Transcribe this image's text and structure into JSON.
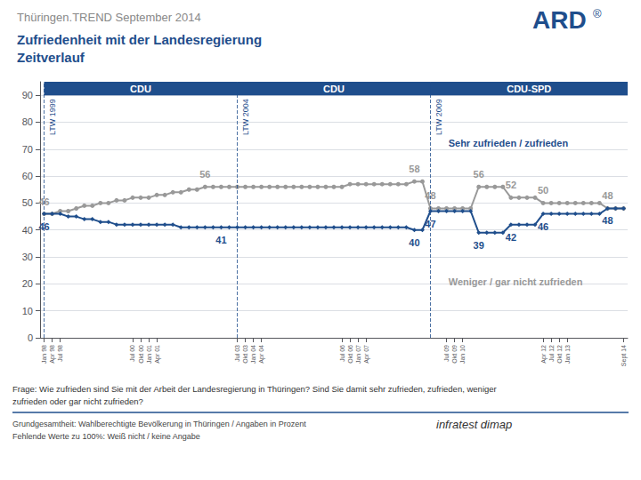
{
  "chart_data": {
    "type": "line",
    "title": "Thüringen.TREND September 2014",
    "subtitle": [
      "Zufriedenheit mit der Landesregierung",
      "Zeitverlauf"
    ],
    "logo": [
      "ARD",
      "®"
    ],
    "categories": [
      "Jan 98",
      "Apr 98",
      "Jul 98",
      null,
      null,
      null,
      null,
      null,
      null,
      null,
      null,
      "Jul 00",
      "Okt 00",
      "Jan 01",
      "Apr 01",
      null,
      null,
      null,
      null,
      null,
      null,
      null,
      null,
      null,
      "Jul 03",
      "Okt 03",
      "Jan 04",
      "Apr 04",
      null,
      null,
      null,
      null,
      null,
      null,
      null,
      null,
      null,
      "Jul 06",
      "Okt 06",
      "Jan 07",
      "Apr 07",
      null,
      null,
      null,
      null,
      null,
      null,
      null,
      null,
      null,
      "Jul 09",
      "Okt 09",
      "Jan 10",
      null,
      null,
      null,
      null,
      null,
      null,
      null,
      null,
      null,
      "Apr 12",
      "Jul 12",
      "Okt 12",
      "Jan 13",
      null,
      null,
      null,
      null,
      null,
      null,
      "Sept 14"
    ],
    "series": [
      {
        "name": "Weniger / gar nicht zufrieden",
        "color": "#999999",
        "marker": "circle",
        "line_style": "solid",
        "values": [
          46,
          46,
          47,
          47,
          48,
          49,
          49,
          50,
          50,
          51,
          51,
          52,
          52,
          52,
          53,
          53,
          54,
          54,
          55,
          55,
          56,
          56,
          56,
          56,
          56,
          56,
          56,
          56,
          56,
          56,
          56,
          56,
          56,
          56,
          56,
          56,
          56,
          56,
          57,
          57,
          57,
          57,
          57,
          57,
          57,
          57,
          58,
          58,
          48,
          48,
          48,
          48,
          48,
          48,
          56,
          56,
          56,
          56,
          52,
          52,
          52,
          52,
          50,
          50,
          50,
          50,
          50,
          50,
          50,
          50,
          48,
          48,
          48
        ],
        "value_labels": [
          "46",
          null,
          null,
          null,
          null,
          null,
          null,
          null,
          null,
          null,
          null,
          null,
          null,
          null,
          null,
          null,
          null,
          null,
          null,
          null,
          "56",
          null,
          null,
          null,
          null,
          null,
          null,
          null,
          null,
          null,
          null,
          null,
          null,
          null,
          null,
          null,
          null,
          null,
          null,
          null,
          null,
          null,
          null,
          null,
          null,
          null,
          "58",
          null,
          "48",
          null,
          null,
          null,
          null,
          null,
          "56",
          null,
          null,
          null,
          "52",
          null,
          null,
          null,
          "50",
          null,
          null,
          null,
          null,
          null,
          null,
          null,
          "48",
          null,
          null
        ]
      },
      {
        "name": "Sehr zufrieden / zufrieden",
        "color": "#1F4E8C",
        "marker": "diamond",
        "line_style": "solid",
        "values": [
          46,
          46,
          46,
          45,
          45,
          44,
          44,
          43,
          43,
          42,
          42,
          42,
          42,
          42,
          42,
          42,
          42,
          41,
          41,
          41,
          41,
          41,
          41,
          41,
          41,
          41,
          41,
          41,
          41,
          41,
          41,
          41,
          41,
          41,
          41,
          41,
          41,
          41,
          41,
          41,
          41,
          41,
          41,
          41,
          41,
          41,
          40,
          40,
          47,
          47,
          47,
          47,
          47,
          47,
          39,
          39,
          39,
          39,
          42,
          42,
          42,
          42,
          46,
          46,
          46,
          46,
          46,
          46,
          46,
          46,
          48,
          48,
          48
        ],
        "value_labels": [
          "46",
          null,
          null,
          null,
          null,
          null,
          null,
          null,
          null,
          null,
          null,
          null,
          null,
          null,
          null,
          null,
          null,
          null,
          null,
          null,
          null,
          null,
          "41",
          null,
          null,
          null,
          null,
          null,
          null,
          null,
          null,
          null,
          null,
          null,
          null,
          null,
          null,
          null,
          null,
          null,
          null,
          null,
          null,
          null,
          null,
          null,
          "40",
          null,
          "47",
          null,
          null,
          null,
          null,
          null,
          "39",
          null,
          null,
          null,
          "42",
          null,
          null,
          null,
          "46",
          null,
          null,
          null,
          null,
          null,
          null,
          null,
          "48",
          null,
          null
        ]
      }
    ],
    "events": [
      {
        "x": 0,
        "label": "LTW 1999"
      },
      {
        "x": 24,
        "label": "LTW 2004"
      },
      {
        "x": 48,
        "label": "LTW 2009"
      }
    ],
    "periods": [
      "CDU",
      "CDU",
      "CDU-SPD"
    ],
    "ylim": [
      0,
      95
    ],
    "yticks": [
      0,
      10,
      20,
      30,
      40,
      50,
      60,
      70,
      80,
      90
    ],
    "grid": true,
    "notes": [
      "Frage: Wie zufrieden sind Sie mit der Arbeit der Landesregierung in Thüringen? Sind Sie damit sehr zufrieden, zufrieden, weniger",
      "zufrieden oder gar nicht zufrieden?",
      "Grundgesamtheit: Wahlberechtigte Bevölkerung in Thüringen / Angaben in Prozent",
      "Fehlende Werte zu 100%: Weiß nicht / keine Angabe"
    ],
    "source": "infratest dimap"
  }
}
